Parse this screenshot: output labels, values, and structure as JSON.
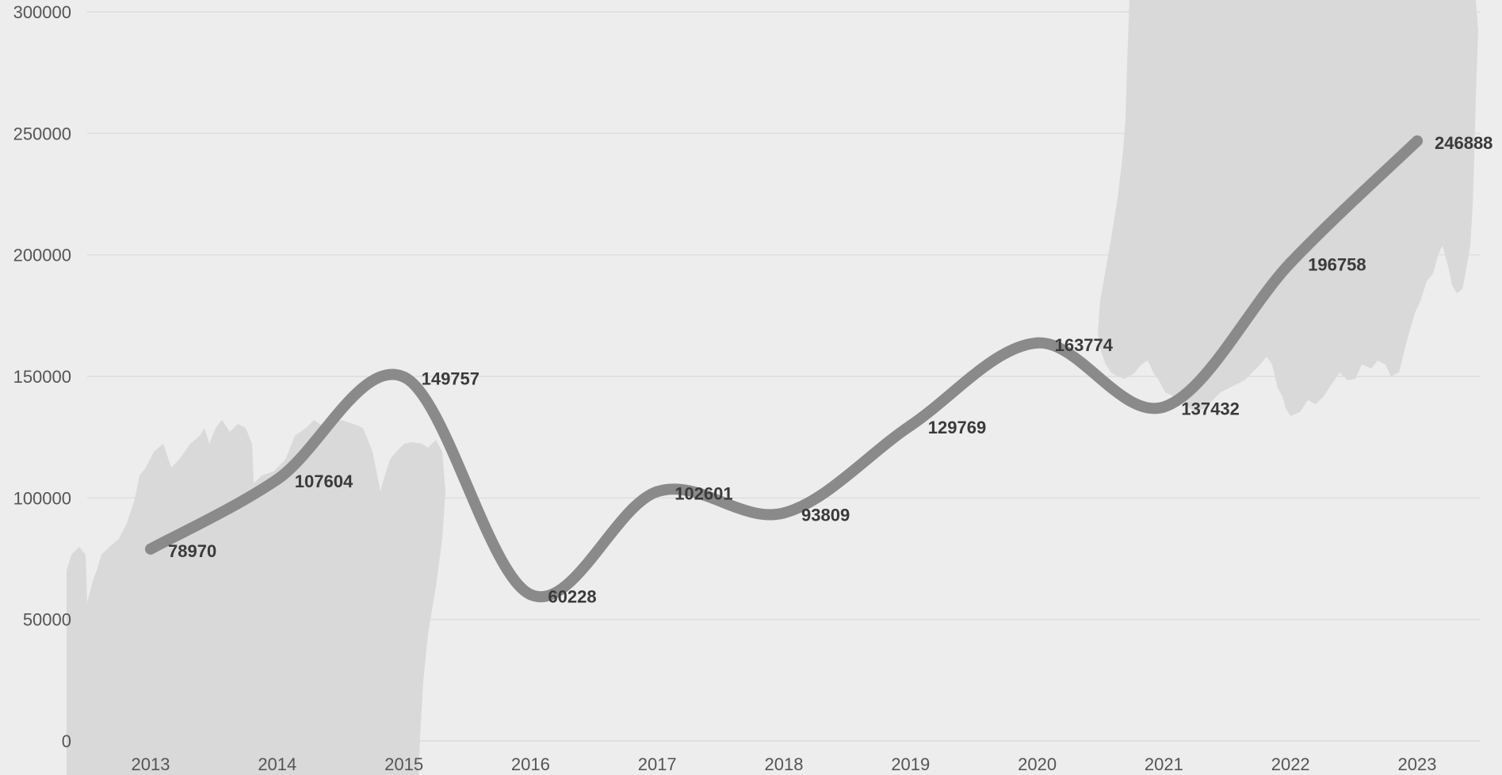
{
  "chart_data": {
    "type": "line",
    "title": "",
    "xlabel": "",
    "ylabel": "",
    "categories": [
      "2013",
      "2014",
      "2015",
      "2016",
      "2017",
      "2018",
      "2019",
      "2020",
      "2021",
      "2022",
      "2023"
    ],
    "series": [
      {
        "values": [
          78970,
          107604,
          149757,
          60228,
          102601,
          93809,
          129769,
          163774,
          137432,
          196758,
          246888
        ],
        "color": "#8a8a8a"
      }
    ],
    "ylim": [
      0,
      300000
    ],
    "yticks": [
      "0",
      "50000",
      "100000",
      "150000",
      "200000",
      "250000",
      "300000"
    ],
    "data_labels": [
      "78970",
      "107604",
      "149757",
      "60228",
      "102601",
      "93809",
      "129769",
      "163774",
      "137432",
      "196758",
      "246888"
    ],
    "grid": true,
    "legend": "none",
    "background": "#ededed",
    "decoration_color": "#d9d9d9"
  }
}
